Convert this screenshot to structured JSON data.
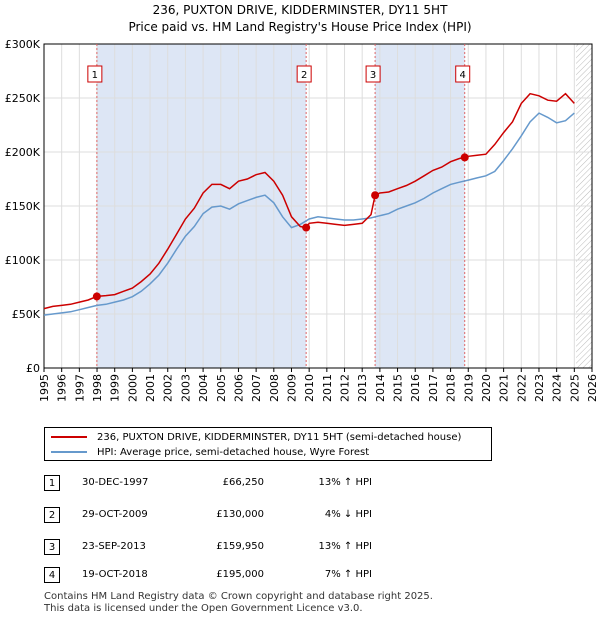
{
  "chart_data": {
    "type": "line",
    "title": "236, PUXTON DRIVE, KIDDERMINSTER, DY11 5HT",
    "subtitle": "Price paid vs. HM Land Registry's House Price Index (HPI)",
    "xlim": [
      1995,
      2026
    ],
    "ylim": [
      0,
      300000
    ],
    "y_ticks": [
      {
        "value": 0,
        "label": "£0"
      },
      {
        "value": 50000,
        "label": "£50K"
      },
      {
        "value": 100000,
        "label": "£100K"
      },
      {
        "value": 150000,
        "label": "£150K"
      },
      {
        "value": 200000,
        "label": "£200K"
      },
      {
        "value": 250000,
        "label": "£250K"
      },
      {
        "value": 300000,
        "label": "£300K"
      }
    ],
    "x_ticks": [
      "1995",
      "1996",
      "1997",
      "1998",
      "1999",
      "2000",
      "2001",
      "2002",
      "2003",
      "2004",
      "2005",
      "2006",
      "2007",
      "2008",
      "2009",
      "2010",
      "2011",
      "2012",
      "2013",
      "2014",
      "2015",
      "2016",
      "2017",
      "2018",
      "2019",
      "2020",
      "2021",
      "2022",
      "2023",
      "2024",
      "2025",
      "2026"
    ],
    "colors": {
      "property": "#cc0000",
      "hpi": "#6699cc",
      "shade": "#dde6f5",
      "marker_line": "#dd6666"
    },
    "ownership_periods": [
      [
        1997.99,
        2009.83
      ],
      [
        2013.73,
        2018.8
      ]
    ],
    "hatched_future_start": 2025.1,
    "series": [
      {
        "name": "236, PUXTON DRIVE, KIDDERMINSTER, DY11 5HT (semi-detached house)",
        "color": "#cc0000",
        "x": [
          1995.0,
          1995.5,
          1996.0,
          1996.5,
          1997.0,
          1997.5,
          1997.99,
          1998.5,
          1999.0,
          1999.5,
          2000.0,
          2000.5,
          2001.0,
          2001.5,
          2002.0,
          2002.5,
          2003.0,
          2003.5,
          2004.0,
          2004.5,
          2005.0,
          2005.5,
          2006.0,
          2006.5,
          2007.0,
          2007.5,
          2008.0,
          2008.5,
          2009.0,
          2009.5,
          2009.83,
          2010.0,
          2010.5,
          2011.0,
          2011.5,
          2012.0,
          2012.5,
          2013.0,
          2013.5,
          2013.73,
          2014.0,
          2014.5,
          2015.0,
          2015.5,
          2016.0,
          2016.5,
          2017.0,
          2017.5,
          2018.0,
          2018.5,
          2018.8,
          2019.0,
          2019.5,
          2020.0,
          2020.5,
          2021.0,
          2021.5,
          2022.0,
          2022.5,
          2023.0,
          2023.5,
          2024.0,
          2024.5,
          2025.0
        ],
        "y": [
          55000,
          57000,
          58000,
          59000,
          61000,
          63000,
          66250,
          67000,
          68000,
          71000,
          74000,
          80000,
          87000,
          97000,
          110000,
          124000,
          138000,
          148000,
          162000,
          170000,
          170000,
          166000,
          173000,
          175000,
          179000,
          181000,
          173000,
          160000,
          140000,
          131000,
          130000,
          134000,
          135000,
          134000,
          133000,
          132000,
          133000,
          134000,
          142000,
          159950,
          162000,
          163000,
          166000,
          169000,
          173000,
          178000,
          183000,
          186000,
          191000,
          194000,
          195000,
          196000,
          197000,
          198000,
          207000,
          218000,
          228000,
          245000,
          254000,
          252000,
          248000,
          247000,
          254000,
          245000
        ]
      },
      {
        "name": "HPI: Average price, semi-detached house, Wyre Forest",
        "color": "#6699cc",
        "x": [
          1995.0,
          1995.5,
          1996.0,
          1996.5,
          1997.0,
          1997.5,
          1998.0,
          1998.5,
          1999.0,
          1999.5,
          2000.0,
          2000.5,
          2001.0,
          2001.5,
          2002.0,
          2002.5,
          2003.0,
          2003.5,
          2004.0,
          2004.5,
          2005.0,
          2005.5,
          2006.0,
          2006.5,
          2007.0,
          2007.5,
          2008.0,
          2008.5,
          2009.0,
          2009.5,
          2010.0,
          2010.5,
          2011.0,
          2011.5,
          2012.0,
          2012.5,
          2013.0,
          2013.5,
          2014.0,
          2014.5,
          2015.0,
          2015.5,
          2016.0,
          2016.5,
          2017.0,
          2017.5,
          2018.0,
          2018.5,
          2019.0,
          2019.5,
          2020.0,
          2020.5,
          2021.0,
          2021.5,
          2022.0,
          2022.5,
          2023.0,
          2023.5,
          2024.0,
          2024.5,
          2025.0
        ],
        "y": [
          49000,
          50000,
          51000,
          52000,
          54000,
          56000,
          58000,
          59000,
          61000,
          63000,
          66000,
          71000,
          78000,
          86000,
          97000,
          110000,
          122000,
          131000,
          143000,
          149000,
          150000,
          147000,
          152000,
          155000,
          158000,
          160000,
          153000,
          140000,
          130000,
          133000,
          138000,
          140000,
          139000,
          138000,
          137000,
          137000,
          138000,
          139000,
          141000,
          143000,
          147000,
          150000,
          153000,
          157000,
          162000,
          166000,
          170000,
          172000,
          174000,
          176000,
          178000,
          182000,
          192000,
          203000,
          215000,
          228000,
          236000,
          232000,
          227000,
          229000,
          236000
        ]
      }
    ],
    "transactions": [
      {
        "num": "1",
        "x": 1997.99,
        "price": 66250
      },
      {
        "num": "2",
        "x": 2009.83,
        "price": 130000
      },
      {
        "num": "3",
        "x": 2013.73,
        "price": 159950
      },
      {
        "num": "4",
        "x": 2018.8,
        "price": 195000
      }
    ]
  },
  "legend": {
    "property_label": "236, PUXTON DRIVE, KIDDERMINSTER, DY11 5HT (semi-detached house)",
    "hpi_label": "HPI: Average price, semi-detached house, Wyre Forest"
  },
  "table": [
    {
      "num": "1",
      "date": "30-DEC-1997",
      "price": "£66,250",
      "hpi": "13% ↑ HPI"
    },
    {
      "num": "2",
      "date": "29-OCT-2009",
      "price": "£130,000",
      "hpi": "4% ↓ HPI"
    },
    {
      "num": "3",
      "date": "23-SEP-2013",
      "price": "£159,950",
      "hpi": "13% ↑ HPI"
    },
    {
      "num": "4",
      "date": "19-OCT-2018",
      "price": "£195,000",
      "hpi": "7% ↑ HPI"
    }
  ],
  "footer": {
    "line1": "Contains HM Land Registry data © Crown copyright and database right 2025.",
    "line2": "This data is licensed under the Open Government Licence v3.0."
  }
}
